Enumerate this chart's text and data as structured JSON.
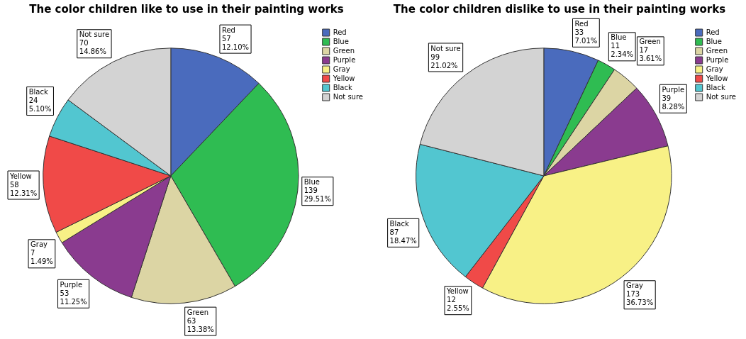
{
  "chart_data": [
    {
      "type": "pie",
      "title": "The color children like to use in their painting works",
      "categories": [
        "Red",
        "Blue",
        "Green",
        "Purple",
        "Gray",
        "Yellow",
        "Black",
        "Not sure"
      ],
      "values": [
        57,
        139,
        63,
        53,
        7,
        58,
        24,
        70
      ],
      "colors": [
        "#4a6bbd",
        "#2fbc52",
        "#dcd5a4",
        "#8a3b8f",
        "#f8f186",
        "#f04a48",
        "#52c6d0",
        "#d3d3d3"
      ],
      "value_labels": [
        "Red\n57\n12.10%",
        "Blue\n139\n29.51%",
        "Green\n63\n13.38%",
        "Purple\n53\n11.25%",
        "Gray\n7\n1.49%",
        "Yellow\n58\n12.31%",
        "Black\n24\n5.10%",
        "Not sure\n70\n14.86%"
      ],
      "legend": "top right"
    },
    {
      "type": "pie",
      "title": "The color children dislike to use in their painting works",
      "categories": [
        "Red",
        "Blue",
        "Green",
        "Purple",
        "Gray",
        "Yellow",
        "Black",
        "Not sure"
      ],
      "values": [
        33,
        11,
        17,
        39,
        173,
        12,
        87,
        99
      ],
      "colors": [
        "#4a6bbd",
        "#2fbc52",
        "#dcd5a4",
        "#8a3b8f",
        "#f8f186",
        "#f04a48",
        "#52c6d0",
        "#d3d3d3"
      ],
      "value_labels": [
        "Red\n33\n7.01%",
        "Blue\n11\n2.34%",
        "Green\n17\n3.61%",
        "Purple\n39\n8.28%",
        "Gray\n173\n36.73%",
        "Yellow\n12\n2.55%",
        "Black\n87\n18.47%",
        "Not sure\n99\n21.02%"
      ],
      "legend": "top right"
    }
  ]
}
